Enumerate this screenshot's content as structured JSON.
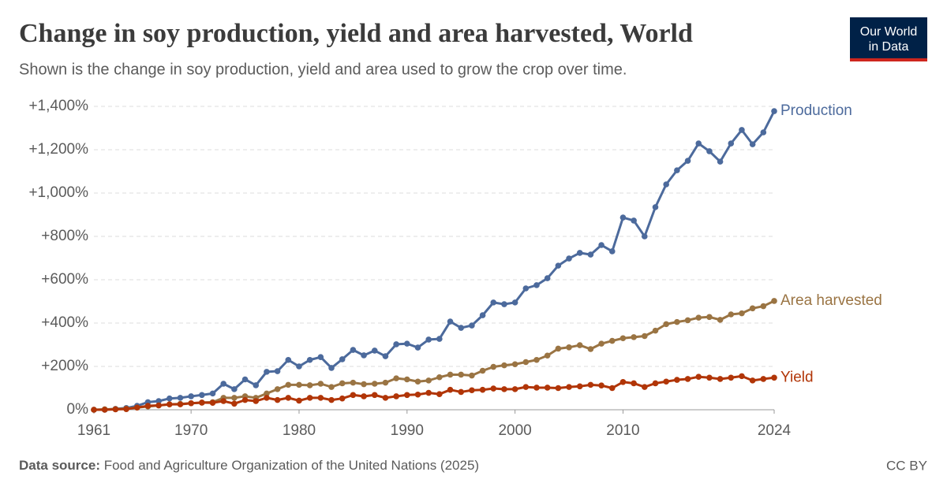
{
  "chart_data": {
    "type": "line",
    "title": "Change in soy production, yield and area harvested, World",
    "subtitle": "Shown is the change in soy production, yield and area used to grow the crop over time.",
    "source_label": "Data source:",
    "source_text": "Food and Agriculture Organization of the United Nations (2025)",
    "license": "CC BY",
    "logo": [
      "Our World",
      "in Data"
    ],
    "x": [
      1961,
      1962,
      1963,
      1964,
      1965,
      1966,
      1967,
      1968,
      1969,
      1970,
      1971,
      1972,
      1973,
      1974,
      1975,
      1976,
      1977,
      1978,
      1979,
      1980,
      1981,
      1982,
      1983,
      1984,
      1985,
      1986,
      1987,
      1988,
      1989,
      1990,
      1991,
      1992,
      1993,
      1994,
      1995,
      1996,
      1997,
      1998,
      1999,
      2000,
      2001,
      2002,
      2003,
      2004,
      2005,
      2006,
      2007,
      2008,
      2009,
      2010,
      2011,
      2012,
      2013,
      2014,
      2015,
      2016,
      2017,
      2018,
      2019,
      2020,
      2021,
      2022,
      2023,
      2024
    ],
    "xlim": [
      1961,
      2024
    ],
    "xticks": [
      1961,
      1970,
      1980,
      1990,
      2000,
      2010,
      2024
    ],
    "ylim": [
      0,
      1400
    ],
    "yticks": [
      {
        "value": 0,
        "label": "0%"
      },
      {
        "value": 200,
        "label": "+200%"
      },
      {
        "value": 400,
        "label": "+400%"
      },
      {
        "value": 600,
        "label": "+600%"
      },
      {
        "value": 800,
        "label": "+800%"
      },
      {
        "value": 1000,
        "label": "+1,000%"
      },
      {
        "value": 1200,
        "label": "+1,200%"
      },
      {
        "value": 1400,
        "label": "+1,400%"
      }
    ],
    "grid": true,
    "series": [
      {
        "name": "Production",
        "color": "#4c6a9c",
        "values": [
          0,
          0,
          4,
          8,
          18,
          35,
          40,
          52,
          55,
          62,
          68,
          75,
          120,
          95,
          140,
          113,
          175,
          178,
          230,
          200,
          230,
          243,
          193,
          233,
          276,
          251,
          273,
          247,
          302,
          305,
          287,
          324,
          327,
          407,
          378,
          389,
          436,
          495,
          487,
          495,
          560,
          575,
          607,
          665,
          698,
          724,
          716,
          760,
          731,
          887,
          873,
          800,
          935,
          1040,
          1105,
          1149,
          1229,
          1193,
          1145,
          1229,
          1291,
          1225,
          1280,
          1378
        ]
      },
      {
        "name": "Area harvested",
        "color": "#9a7443",
        "values": [
          0,
          2,
          3,
          5,
          10,
          15,
          20,
          25,
          27,
          30,
          33,
          35,
          55,
          55,
          62,
          55,
          75,
          95,
          115,
          115,
          113,
          120,
          105,
          122,
          125,
          118,
          120,
          125,
          145,
          140,
          130,
          135,
          150,
          162,
          162,
          158,
          180,
          198,
          205,
          210,
          220,
          230,
          250,
          282,
          288,
          298,
          280,
          305,
          318,
          330,
          335,
          340,
          365,
          395,
          405,
          413,
          425,
          428,
          415,
          440,
          445,
          468,
          478,
          502
        ]
      },
      {
        "name": "Yield",
        "color": "#b13507",
        "values": [
          0,
          0,
          2,
          3,
          10,
          18,
          20,
          25,
          25,
          30,
          33,
          32,
          40,
          28,
          45,
          40,
          55,
          45,
          55,
          42,
          55,
          55,
          45,
          52,
          68,
          62,
          68,
          55,
          62,
          68,
          70,
          78,
          72,
          92,
          82,
          90,
          92,
          98,
          95,
          95,
          105,
          102,
          102,
          100,
          105,
          108,
          115,
          112,
          100,
          128,
          122,
          105,
          122,
          130,
          138,
          142,
          152,
          148,
          142,
          148,
          155,
          135,
          142,
          148
        ]
      }
    ]
  }
}
